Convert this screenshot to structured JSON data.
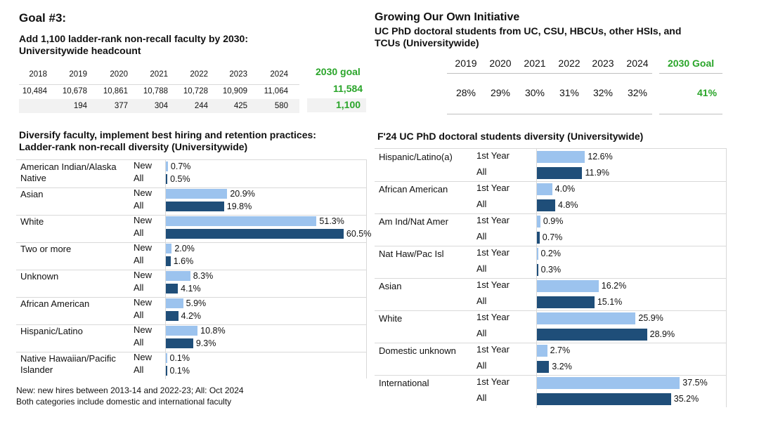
{
  "left": {
    "goal_title": "Goal #3:",
    "headcount": {
      "title_line1": "Add 1,100 ladder-rank non-recall faculty by 2030:",
      "title_line2": "Universitywide headcount",
      "years": [
        "2018",
        "2019",
        "2020",
        "2021",
        "2022",
        "2023",
        "2024"
      ],
      "headcount": [
        "10,484",
        "10,678",
        "10,861",
        "10,788",
        "10,728",
        "10,909",
        "11,064"
      ],
      "change": [
        "",
        "194",
        "377",
        "304",
        "244",
        "425",
        "580"
      ],
      "goal_label": "2030 goal",
      "goal_headcount": "11,584",
      "goal_change": "1,100"
    },
    "diversity_title_line1": "Diversify faculty, implement best hiring and retention practices:",
    "diversity_title_line2": "Ladder-rank non-recall diversity (Universitywide)",
    "note_line1": "New: new hires between 2013-14 and 2022-23; All: Oct 2024",
    "note_line2": "Both categories include domestic and international faculty"
  },
  "right": {
    "initiative_title": "Growing Our Own Initiative",
    "initiative_subtitle_line1": "UC PhD doctoral students from UC, CSU, HBCUs, other HSIs, and",
    "initiative_subtitle_line2": "TCUs (Universitywide)",
    "years": [
      "2019",
      "2020",
      "2021",
      "2022",
      "2023",
      "2024"
    ],
    "values": [
      "28%",
      "29%",
      "30%",
      "31%",
      "32%",
      "32%"
    ],
    "goal_label": "2030 Goal",
    "goal_value": "41%",
    "diversity_title": "F'24 UC PhD doctoral students diversity (Universitywide)"
  },
  "colors": {
    "light_bar": "#9cc3ee",
    "dark_bar": "#1f4e79",
    "goal_green": "#2aa52a"
  },
  "chart_data": [
    {
      "type": "bar",
      "title": "Ladder-rank non-recall diversity (Universitywide)",
      "categories": [
        "American Indian/Alaska Native",
        "Asian",
        "White",
        "Two or more",
        "Unknown",
        "African American",
        "Hispanic/Latino",
        "Native Hawaiian/Pacific Islander"
      ],
      "category_lines": [
        [
          "American Indian/Alaska",
          "Native"
        ],
        [
          "Asian"
        ],
        [
          "White"
        ],
        [
          "Two or more"
        ],
        [
          "Unknown"
        ],
        [
          "African American"
        ],
        [
          "Hispanic/Latino"
        ],
        [
          "Native Hawaiian/Pacific",
          "Islander"
        ]
      ],
      "sub_labels": [
        "New",
        "All"
      ],
      "series": [
        {
          "name": "New",
          "values": [
            0.7,
            20.9,
            51.3,
            2.0,
            8.3,
            5.9,
            10.8,
            0.1
          ]
        },
        {
          "name": "All",
          "values": [
            0.5,
            19.8,
            60.5,
            1.6,
            4.1,
            4.2,
            9.3,
            0.1
          ]
        }
      ],
      "unit": "%",
      "xlim": [
        0,
        65
      ]
    },
    {
      "type": "bar",
      "title": "F'24 UC PhD doctoral students diversity (Universitywide)",
      "categories": [
        "Hispanic/Latino(a)",
        "African American",
        "Am Ind/Nat Amer",
        "Nat Haw/Pac Isl",
        "Asian",
        "White",
        "Domestic unknown",
        "International"
      ],
      "category_lines": [
        [
          "Hispanic/Latino(a)"
        ],
        [
          "African American"
        ],
        [
          "Am Ind/Nat Amer"
        ],
        [
          "Nat Haw/Pac Isl"
        ],
        [
          "Asian"
        ],
        [
          "White"
        ],
        [
          "Domestic unknown"
        ],
        [
          "International"
        ]
      ],
      "sub_labels": [
        "1st Year",
        "All"
      ],
      "series": [
        {
          "name": "1st Year",
          "values": [
            12.6,
            4.0,
            0.9,
            0.2,
            16.2,
            25.9,
            2.7,
            37.5
          ]
        },
        {
          "name": "All",
          "values": [
            11.9,
            4.8,
            0.7,
            0.3,
            15.1,
            28.9,
            3.2,
            35.2
          ]
        }
      ],
      "unit": "%",
      "xlim": [
        0,
        40
      ]
    }
  ]
}
